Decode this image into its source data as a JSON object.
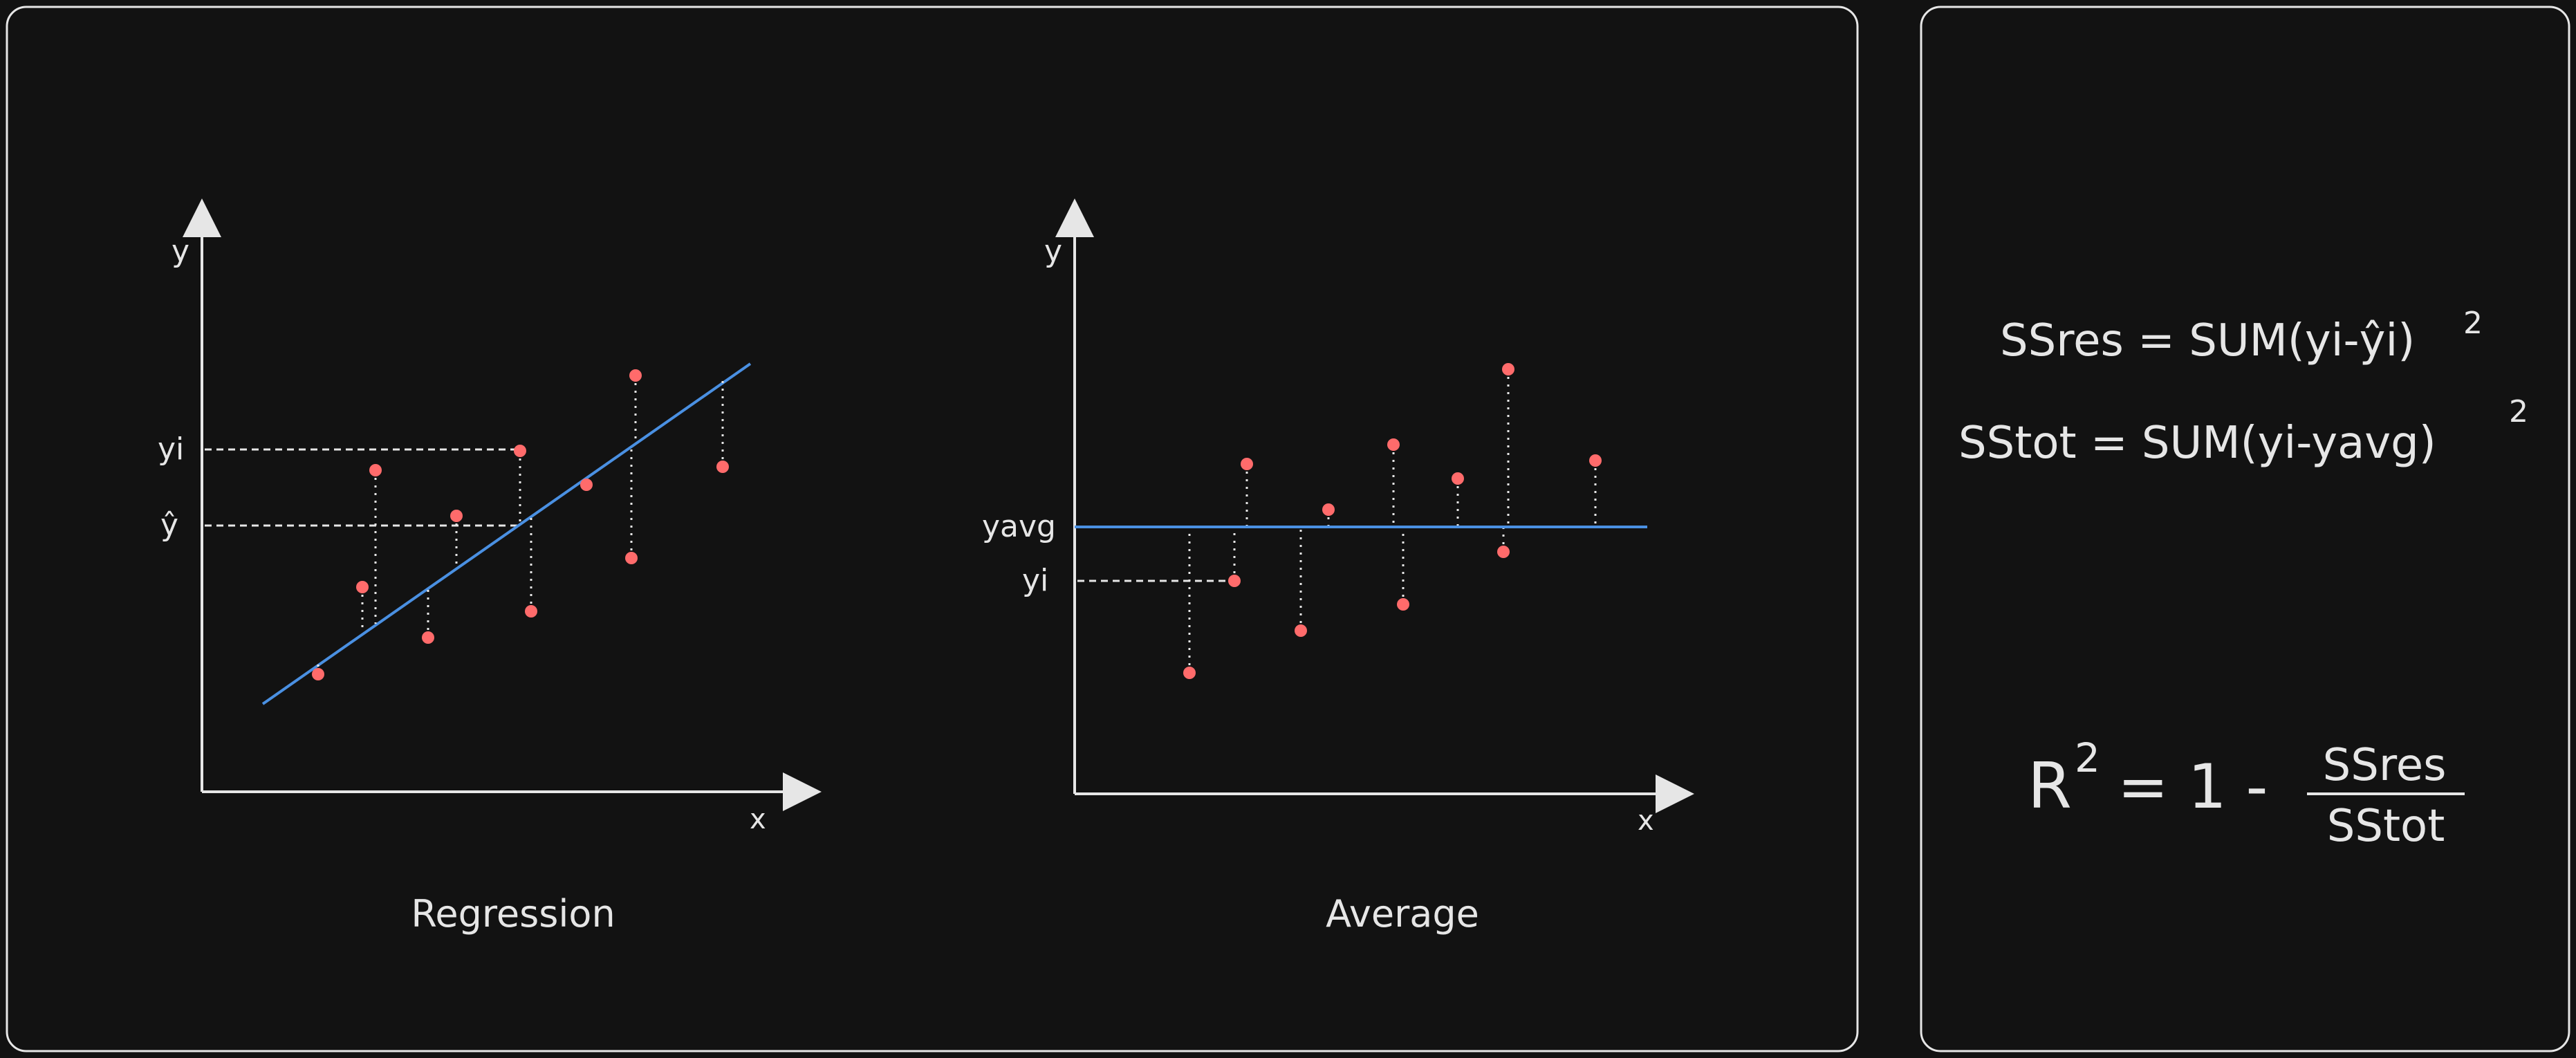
{
  "colors": {
    "background": "#121212",
    "foreground": "#e6e6e6",
    "regression_line": "#4a90e2",
    "average_line": "#4a90e2",
    "points": "#ff6b6b"
  },
  "left_panel": {
    "regression": {
      "axis_y_label": "y",
      "axis_x_label": "x",
      "label_yi": "yi",
      "label_yhat": "ŷ",
      "caption": "Regression"
    },
    "average": {
      "axis_y_label": "y",
      "axis_x_label": "x",
      "label_yavg": "yavg",
      "label_yi": "yi",
      "caption": "Average"
    }
  },
  "right_panel": {
    "formula_ssres": "SSres = SUM(yi-ŷi)",
    "formula_ssres_exp": "2",
    "formula_sstot": "SStot = SUM(yi-yavg)",
    "formula_sstot_exp": "2",
    "r2_R": "R",
    "r2_exp": "2",
    "r2_eq": "= 1 -",
    "r2_num": "SSres",
    "r2_den": "SStot"
  }
}
